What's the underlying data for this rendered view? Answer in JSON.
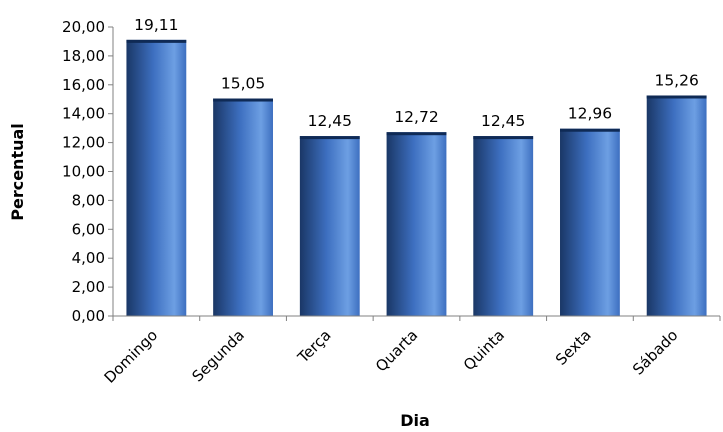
{
  "chart_data": {
    "type": "bar",
    "title": "",
    "xlabel": "Dia",
    "ylabel": "Percentual",
    "categories": [
      "Domingo",
      "Segunda",
      "Terça",
      "Quarta",
      "Quinta",
      "Sexta",
      "Sábado"
    ],
    "values": [
      19.11,
      15.05,
      12.45,
      12.72,
      12.45,
      12.96,
      15.26
    ],
    "value_labels": [
      "19,11",
      "15,05",
      "12,45",
      "12,72",
      "12,45",
      "12,96",
      "15,26"
    ],
    "ylim": [
      0,
      20
    ],
    "yticks": [
      "0,00",
      "2,00",
      "4,00",
      "6,00",
      "8,00",
      "10,00",
      "12,00",
      "14,00",
      "16,00",
      "18,00",
      "20,00"
    ],
    "grid": false,
    "legend": "none",
    "bar_color": "#3d6fc0",
    "bar_color_dark": "#1a3766",
    "bar_color_light": "#6d9fe3"
  }
}
